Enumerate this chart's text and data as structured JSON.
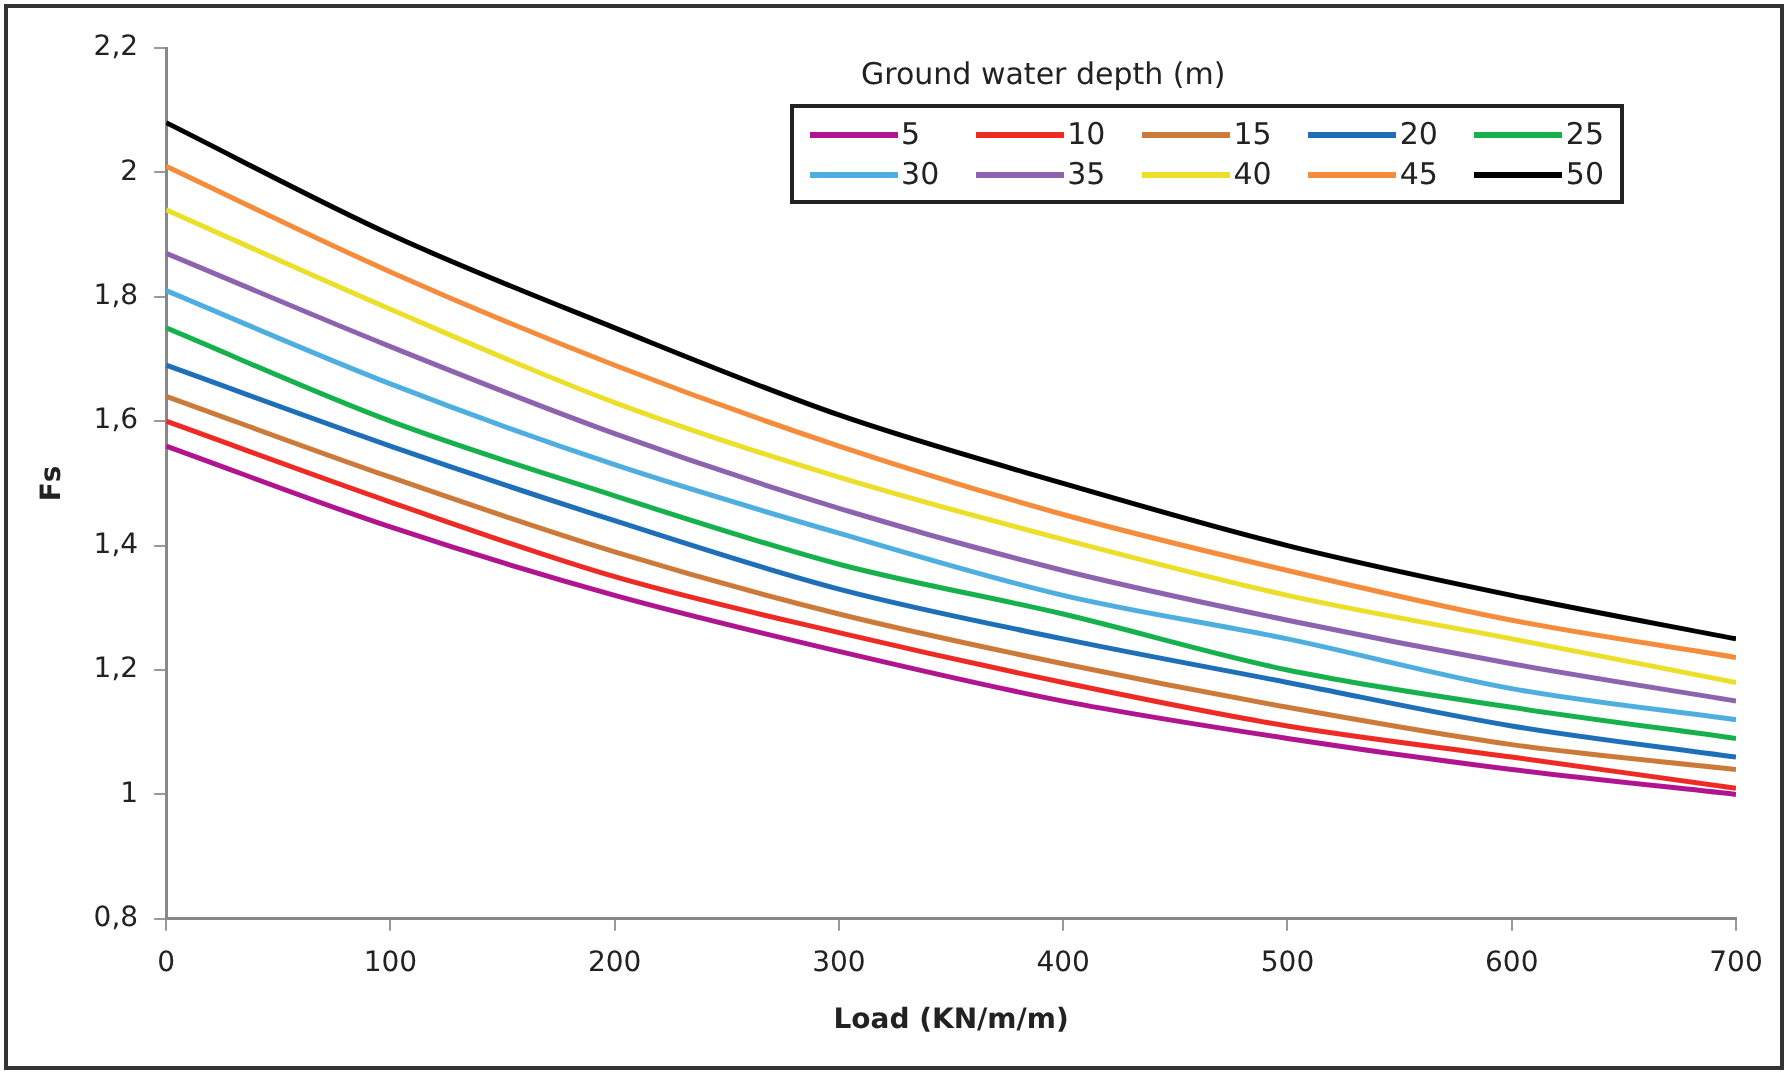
{
  "chart_data": {
    "type": "line",
    "xlabel": "Load (KN/m/m)",
    "ylabel": "Fs",
    "legend_title": "Ground water depth (m)",
    "legend": "top right",
    "marker": "none",
    "line_style": "solid",
    "grid": false,
    "x": [
      0,
      100,
      200,
      300,
      400,
      500,
      600,
      700
    ],
    "xlim": [
      0,
      700
    ],
    "xticks": [
      0,
      100,
      200,
      300,
      400,
      500,
      600,
      700
    ],
    "ylim": [
      0.8,
      2.2
    ],
    "yticks": [
      {
        "value": 0.8,
        "label": "0,8"
      },
      {
        "value": 1,
        "label": "1"
      },
      {
        "value": 1.2,
        "label": "1,2"
      },
      {
        "value": 1.4,
        "label": "1,4"
      },
      {
        "value": 1.6,
        "label": "1,6"
      },
      {
        "value": 1.8,
        "label": "1,8"
      },
      {
        "value": 2,
        "label": "2"
      },
      {
        "value": 2.2,
        "label": "2,2"
      }
    ],
    "series": [
      {
        "name": "5",
        "color": "#b0158f",
        "values": [
          1.56,
          1.43,
          1.32,
          1.23,
          1.15,
          1.09,
          1.04,
          1.0
        ]
      },
      {
        "name": "10",
        "color": "#ee2a24",
        "values": [
          1.6,
          1.47,
          1.35,
          1.26,
          1.18,
          1.11,
          1.06,
          1.01
        ]
      },
      {
        "name": "15",
        "color": "#cc7a3a",
        "values": [
          1.64,
          1.51,
          1.39,
          1.29,
          1.21,
          1.14,
          1.08,
          1.04
        ]
      },
      {
        "name": "20",
        "color": "#1f6fb8",
        "values": [
          1.69,
          1.56,
          1.44,
          1.33,
          1.25,
          1.18,
          1.11,
          1.06
        ]
      },
      {
        "name": "25",
        "color": "#16b14c",
        "values": [
          1.75,
          1.6,
          1.48,
          1.37,
          1.29,
          1.2,
          1.14,
          1.09
        ]
      },
      {
        "name": "30",
        "color": "#4eaee0",
        "values": [
          1.81,
          1.66,
          1.53,
          1.42,
          1.32,
          1.25,
          1.17,
          1.12
        ]
      },
      {
        "name": "35",
        "color": "#8d63b0",
        "values": [
          1.87,
          1.72,
          1.58,
          1.46,
          1.36,
          1.28,
          1.21,
          1.15
        ]
      },
      {
        "name": "40",
        "color": "#ecdf2a",
        "values": [
          1.94,
          1.78,
          1.63,
          1.51,
          1.41,
          1.32,
          1.25,
          1.18
        ]
      },
      {
        "name": "45",
        "color": "#f58c3c",
        "values": [
          2.01,
          1.84,
          1.69,
          1.56,
          1.45,
          1.36,
          1.28,
          1.22
        ]
      },
      {
        "name": "50",
        "color": "#000000",
        "values": [
          2.08,
          1.9,
          1.75,
          1.61,
          1.5,
          1.4,
          1.32,
          1.25
        ]
      }
    ]
  }
}
